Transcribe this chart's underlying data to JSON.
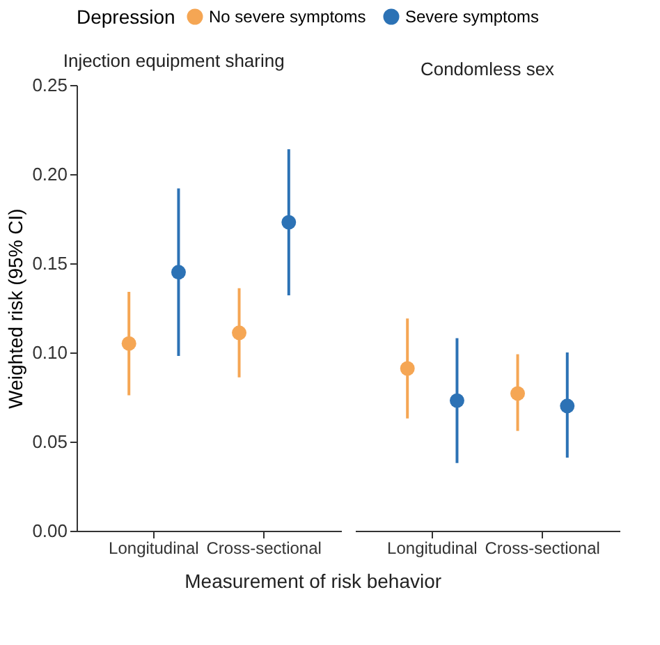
{
  "chart_data": [
    {
      "type": "scatter",
      "title": "Injection equipment sharing",
      "xlabel": "Measurement of risk behavior",
      "ylabel": "Weighted risk (95% CI)",
      "legend_title": "Depression",
      "legend": "top",
      "grid": false,
      "marker": "circle",
      "categories": [
        "Longitudinal",
        "Cross-sectional"
      ],
      "ylim": [
        0,
        0.25
      ],
      "yticks": [
        {
          "value": 0,
          "label": "0.00"
        },
        0.05,
        {
          "value": 0.1,
          "label": "0.10"
        },
        0.15,
        {
          "value": 0.2,
          "label": "0.20"
        },
        0.25
      ],
      "series": [
        {
          "name": "No severe symptoms",
          "color": "#f5a654",
          "values": [
            0.105,
            0.111
          ],
          "errors": [
            [
              0.076,
              0.134
            ],
            [
              0.086,
              0.136
            ]
          ]
        },
        {
          "name": "Severe symptoms",
          "color": "#2c72b5",
          "values": [
            0.145,
            0.173
          ],
          "errors": [
            [
              0.098,
              0.192
            ],
            [
              0.132,
              0.214
            ]
          ]
        }
      ]
    },
    {
      "type": "scatter",
      "title": "Condomless sex",
      "grid": false,
      "marker": "circle",
      "tick_labels": "x",
      "categories": [
        "Longitudinal",
        "Cross-sectional"
      ],
      "ylim": [
        0,
        0.25
      ],
      "series": [
        {
          "color": "#f5a654",
          "values": [
            0.091,
            0.077
          ],
          "errors": [
            [
              0.063,
              0.119
            ],
            [
              0.056,
              0.099
            ]
          ]
        },
        {
          "color": "#2c72b5",
          "values": [
            0.073,
            0.07
          ],
          "errors": [
            [
              0.038,
              0.108
            ],
            [
              0.041,
              0.1
            ]
          ]
        }
      ]
    }
  ]
}
